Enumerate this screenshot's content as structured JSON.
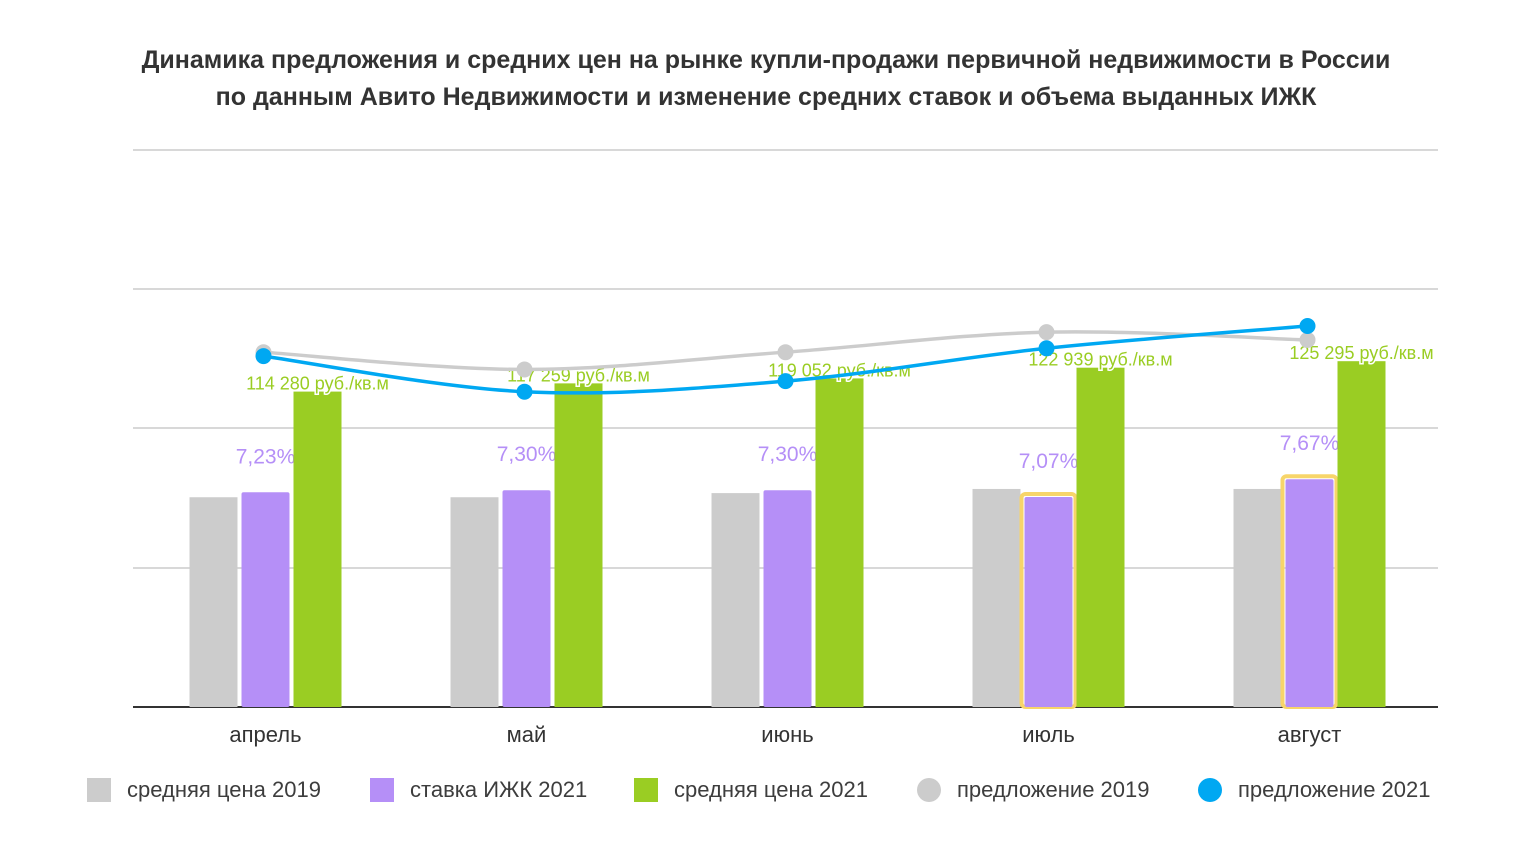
{
  "title": {
    "line1": "Динамика предложения и средних цен на рынке купли-продажи первичной недвижимости в России",
    "line2": "по данным Авито Недвижимости и изменение средних ставок и объема выданных ИЖК"
  },
  "colors": {
    "price_2019": "#cccccc",
    "rate_2021": "#b58ff7",
    "price_2021": "#9acd23",
    "offer_2019": "#cccccc",
    "offer_2021": "#00a8f2",
    "highlight": "#f7d56a",
    "rate_label": "#b58ff7",
    "price_label": "#9acd23",
    "grid": "#cccccc",
    "axis": "#333333"
  },
  "legend": [
    {
      "label": "средняя цена 2019",
      "color_key": "price_2019",
      "shape": "square"
    },
    {
      "label": "ставка ИЖК 2021",
      "color_key": "rate_2021",
      "shape": "square"
    },
    {
      "label": "средняя цена 2021",
      "color_key": "price_2021",
      "shape": "square"
    },
    {
      "label": "предложение 2019",
      "color_key": "offer_2019",
      "shape": "circle"
    },
    {
      "label": "предложение 2021",
      "color_key": "offer_2021",
      "shape": "circle"
    }
  ],
  "chart_data": {
    "type": "bar",
    "categories": [
      "апрель",
      "май",
      "июнь",
      "июль",
      "август"
    ],
    "grid": true,
    "legend_position": "bottom",
    "highlighted_categories": [
      "июль",
      "август"
    ],
    "series": [
      {
        "name": "средняя цена 2019",
        "type": "bar",
        "values": [
          76000,
          76000,
          77500,
          79000,
          79000
        ]
      },
      {
        "name": "ставка ИЖК 2021",
        "type": "bar",
        "values": [
          7.23,
          7.3,
          7.3,
          7.07,
          7.67
        ],
        "data_labels": [
          "7,23%",
          "7,30%",
          "7,30%",
          "7,07%",
          "7,67%"
        ]
      },
      {
        "name": "средняя цена 2021",
        "type": "bar",
        "values": [
          114280,
          117259,
          119052,
          122939,
          125295
        ],
        "data_labels": [
          "114 280 руб./кв.м",
          "117 259 руб./кв.м",
          "119 052 руб./кв.м",
          "122 939 руб./кв.м",
          "125 295 руб./кв.м"
        ]
      },
      {
        "name": "предложение 2019",
        "type": "line",
        "values": [
          0.637,
          0.606,
          0.637,
          0.673,
          0.659
        ]
      },
      {
        "name": "предложение 2021",
        "type": "line",
        "values": [
          0.63,
          0.566,
          0.585,
          0.644,
          0.684
        ]
      }
    ]
  }
}
